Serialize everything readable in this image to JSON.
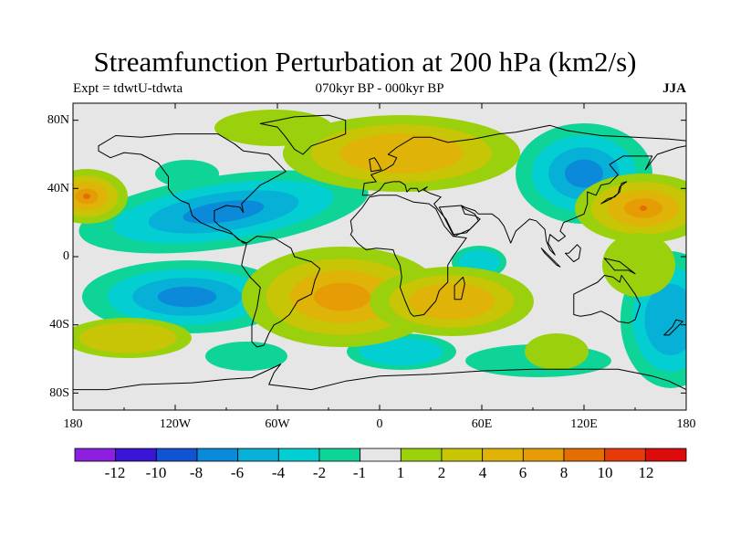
{
  "header": {
    "title": "Streamfunction Perturbation at 200 hPa (km2/s)",
    "left_string": "Expt = tdwtU-tdwta",
    "center_string": "070kyr BP - 000kyr BP",
    "right_string": "JJA"
  },
  "axes": {
    "lat_labels": [
      "80N",
      "40N",
      "0",
      "40S",
      "80S"
    ],
    "lon_labels": [
      "180",
      "120W",
      "60W",
      "0",
      "60E",
      "120E",
      "180"
    ]
  },
  "colorbar": {
    "labels": [
      "-12",
      "-10",
      "-8",
      "-6",
      "-4",
      "-2",
      "-1",
      "1",
      "2",
      "4",
      "6",
      "8",
      "10",
      "12"
    ],
    "colors": [
      "#8C1FE0",
      "#3A15D6",
      "#1153D3",
      "#0A8AD9",
      "#06B0D6",
      "#03CFD2",
      "#0FD498",
      "#E6E6E6",
      "#9AD10C",
      "#C8C406",
      "#DFB307",
      "#E59C05",
      "#E36E02",
      "#E53A0A",
      "#DD0C0C"
    ]
  },
  "map": {
    "colors": {
      "neutral": "#E6E6E6",
      "pos1": "#9AD10C",
      "pos2": "#C8C406",
      "pos3": "#DFB307",
      "pos4": "#E59C05",
      "pos5": "#E36E02",
      "neg1": "#0FD498",
      "neg2": "#03CFD2",
      "neg3": "#06B0D6",
      "neg4": "#0A8AD9"
    }
  }
}
